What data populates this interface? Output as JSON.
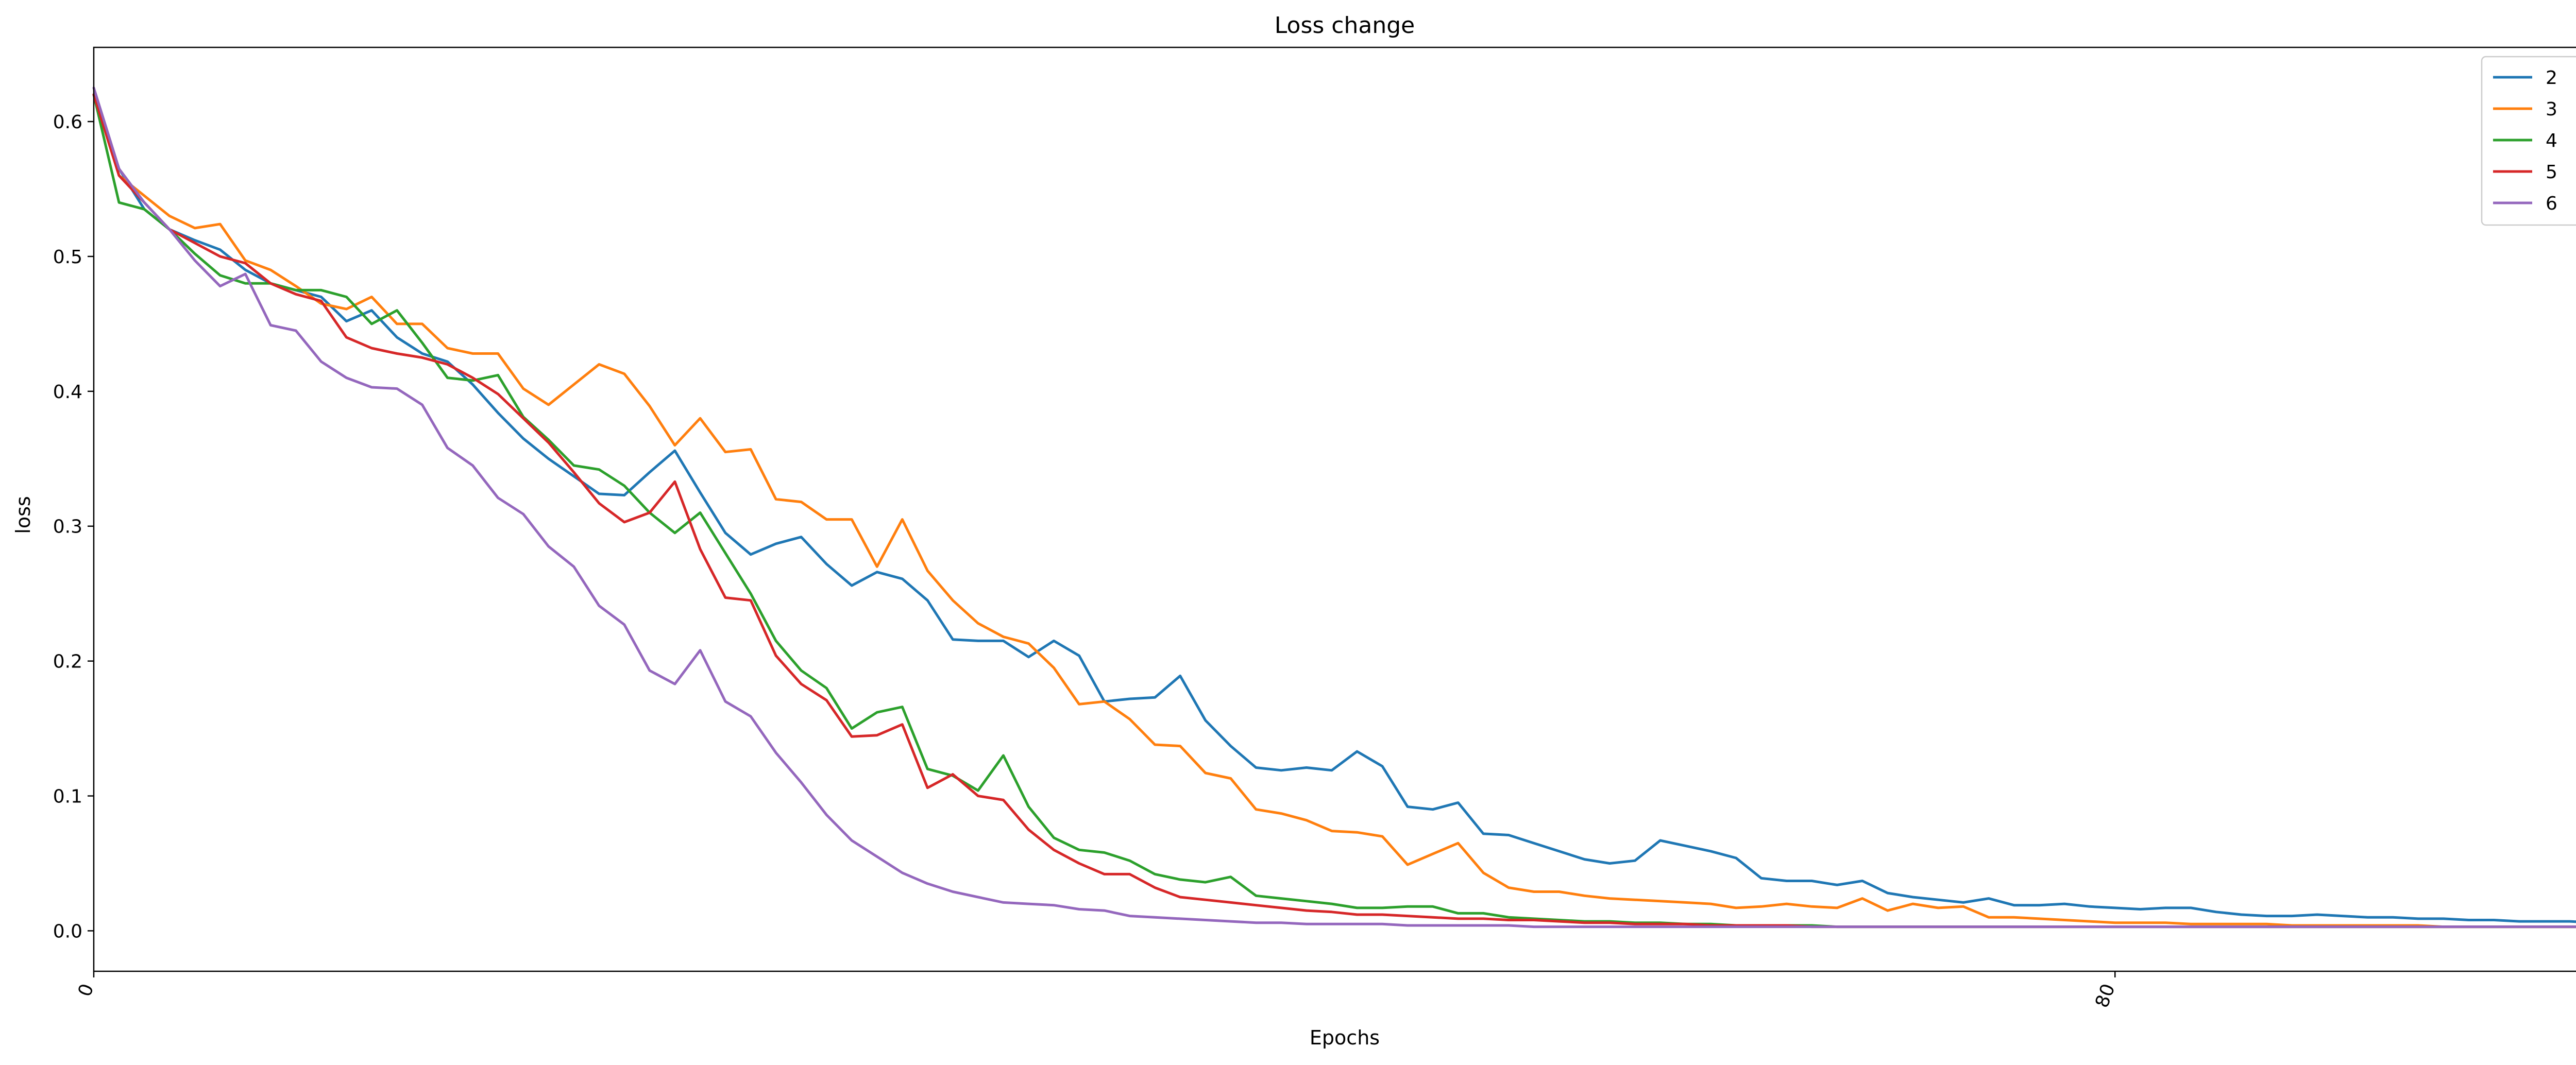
{
  "chart_data": {
    "type": "line",
    "title": "Loss change",
    "xlabel": "Epochs",
    "ylabel": "loss",
    "xlim": [
      0,
      99
    ],
    "ylim": [
      -0.03,
      0.655
    ],
    "xticks": [
      0,
      80
    ],
    "yticks": [
      0.0,
      0.1,
      0.2,
      0.3,
      0.4,
      0.5,
      0.6
    ],
    "ytick_labels": [
      "0.0",
      "0.1",
      "0.2",
      "0.3",
      "0.4",
      "0.5",
      "0.6"
    ],
    "xtick_rotation": -70,
    "grid": false,
    "legend": "top-right",
    "series": [
      {
        "name": "2",
        "color": "#1f77b4",
        "values": [
          0.62,
          0.565,
          0.535,
          0.52,
          0.512,
          0.505,
          0.49,
          0.48,
          0.475,
          0.47,
          0.452,
          0.46,
          0.44,
          0.428,
          0.422,
          0.405,
          0.384,
          0.365,
          0.35,
          0.337,
          0.324,
          0.323,
          0.34,
          0.356,
          0.325,
          0.295,
          0.279,
          0.287,
          0.292,
          0.272,
          0.256,
          0.266,
          0.261,
          0.245,
          0.216,
          0.215,
          0.215,
          0.203,
          0.215,
          0.204,
          0.17,
          0.172,
          0.173,
          0.189,
          0.156,
          0.137,
          0.121,
          0.119,
          0.121,
          0.119,
          0.133,
          0.122,
          0.092,
          0.09,
          0.095,
          0.072,
          0.071,
          0.065,
          0.059,
          0.053,
          0.05,
          0.052,
          0.067,
          0.063,
          0.059,
          0.054,
          0.039,
          0.037,
          0.037,
          0.034,
          0.037,
          0.028,
          0.025,
          0.023,
          0.021,
          0.024,
          0.019,
          0.019,
          0.02,
          0.018,
          0.017,
          0.016,
          0.017,
          0.017,
          0.014,
          0.012,
          0.011,
          0.011,
          0.012,
          0.011,
          0.01,
          0.01,
          0.009,
          0.009,
          0.008,
          0.008,
          0.007,
          0.007,
          0.007,
          0.006
        ]
      },
      {
        "name": "3",
        "color": "#ff7f0e",
        "values": [
          0.62,
          0.56,
          0.545,
          0.53,
          0.521,
          0.524,
          0.497,
          0.49,
          0.478,
          0.465,
          0.461,
          0.47,
          0.45,
          0.45,
          0.432,
          0.428,
          0.428,
          0.402,
          0.39,
          0.405,
          0.42,
          0.413,
          0.389,
          0.36,
          0.38,
          0.355,
          0.357,
          0.32,
          0.318,
          0.305,
          0.305,
          0.27,
          0.305,
          0.267,
          0.245,
          0.228,
          0.218,
          0.213,
          0.195,
          0.168,
          0.17,
          0.157,
          0.138,
          0.137,
          0.117,
          0.113,
          0.09,
          0.087,
          0.082,
          0.074,
          0.073,
          0.07,
          0.049,
          0.057,
          0.065,
          0.043,
          0.032,
          0.029,
          0.029,
          0.026,
          0.024,
          0.023,
          0.022,
          0.021,
          0.02,
          0.017,
          0.018,
          0.02,
          0.018,
          0.017,
          0.024,
          0.015,
          0.02,
          0.017,
          0.018,
          0.01,
          0.01,
          0.009,
          0.008,
          0.007,
          0.006,
          0.006,
          0.006,
          0.005,
          0.005,
          0.005,
          0.005,
          0.004,
          0.004,
          0.004,
          0.004,
          0.004,
          0.004,
          0.003,
          0.003,
          0.003,
          0.003,
          0.003,
          0.003,
          0.003
        ]
      },
      {
        "name": "4",
        "color": "#2ca02c",
        "values": [
          0.62,
          0.54,
          0.535,
          0.52,
          0.502,
          0.486,
          0.48,
          0.48,
          0.475,
          0.475,
          0.47,
          0.45,
          0.46,
          0.436,
          0.41,
          0.408,
          0.412,
          0.381,
          0.364,
          0.345,
          0.342,
          0.33,
          0.31,
          0.295,
          0.31,
          0.28,
          0.25,
          0.215,
          0.193,
          0.18,
          0.15,
          0.162,
          0.166,
          0.12,
          0.115,
          0.104,
          0.13,
          0.092,
          0.069,
          0.06,
          0.058,
          0.052,
          0.042,
          0.038,
          0.036,
          0.04,
          0.026,
          0.024,
          0.022,
          0.02,
          0.017,
          0.017,
          0.018,
          0.018,
          0.013,
          0.013,
          0.01,
          0.009,
          0.008,
          0.007,
          0.007,
          0.006,
          0.006,
          0.005,
          0.005,
          0.004,
          0.004,
          0.004,
          0.004,
          0.003,
          0.003,
          0.003,
          0.003,
          0.003,
          0.003,
          0.003,
          0.003,
          0.003,
          0.003,
          0.003,
          0.003,
          0.003,
          0.003,
          0.003,
          0.003,
          0.003,
          0.003,
          0.003,
          0.003,
          0.003,
          0.003,
          0.003,
          0.003,
          0.003,
          0.003,
          0.003,
          0.003,
          0.003,
          0.003,
          0.003
        ]
      },
      {
        "name": "5",
        "color": "#d62728",
        "values": [
          0.62,
          0.56,
          0.54,
          0.52,
          0.51,
          0.5,
          0.495,
          0.48,
          0.472,
          0.467,
          0.44,
          0.432,
          0.428,
          0.425,
          0.42,
          0.41,
          0.398,
          0.38,
          0.362,
          0.34,
          0.317,
          0.303,
          0.31,
          0.333,
          0.283,
          0.247,
          0.245,
          0.204,
          0.183,
          0.171,
          0.144,
          0.145,
          0.153,
          0.106,
          0.116,
          0.1,
          0.097,
          0.075,
          0.06,
          0.05,
          0.042,
          0.042,
          0.032,
          0.025,
          0.023,
          0.021,
          0.019,
          0.017,
          0.015,
          0.014,
          0.012,
          0.012,
          0.011,
          0.01,
          0.009,
          0.009,
          0.008,
          0.008,
          0.007,
          0.006,
          0.006,
          0.005,
          0.005,
          0.005,
          0.004,
          0.004,
          0.004,
          0.004,
          0.003,
          0.003,
          0.003,
          0.003,
          0.003,
          0.003,
          0.003,
          0.003,
          0.003,
          0.003,
          0.003,
          0.003,
          0.003,
          0.003,
          0.003,
          0.003,
          0.003,
          0.003,
          0.003,
          0.003,
          0.003,
          0.003,
          0.003,
          0.003,
          0.003,
          0.003,
          0.003,
          0.003,
          0.003,
          0.003,
          0.003,
          0.003
        ]
      },
      {
        "name": "6",
        "color": "#9467bd",
        "values": [
          0.625,
          0.565,
          0.54,
          0.52,
          0.497,
          0.478,
          0.487,
          0.449,
          0.445,
          0.422,
          0.41,
          0.403,
          0.402,
          0.39,
          0.358,
          0.345,
          0.321,
          0.309,
          0.285,
          0.27,
          0.241,
          0.227,
          0.193,
          0.183,
          0.208,
          0.17,
          0.159,
          0.132,
          0.11,
          0.086,
          0.067,
          0.055,
          0.043,
          0.035,
          0.029,
          0.025,
          0.021,
          0.02,
          0.019,
          0.016,
          0.015,
          0.011,
          0.01,
          0.009,
          0.008,
          0.007,
          0.006,
          0.006,
          0.005,
          0.005,
          0.005,
          0.005,
          0.004,
          0.004,
          0.004,
          0.004,
          0.004,
          0.003,
          0.003,
          0.003,
          0.003,
          0.003,
          0.003,
          0.003,
          0.003,
          0.003,
          0.003,
          0.003,
          0.003,
          0.003,
          0.003,
          0.003,
          0.003,
          0.003,
          0.003,
          0.003,
          0.003,
          0.003,
          0.003,
          0.003,
          0.003,
          0.003,
          0.003,
          0.003,
          0.003,
          0.003,
          0.003,
          0.003,
          0.003,
          0.003,
          0.003,
          0.003,
          0.003,
          0.003,
          0.003,
          0.003,
          0.003,
          0.003,
          0.003,
          0.003
        ]
      }
    ]
  }
}
